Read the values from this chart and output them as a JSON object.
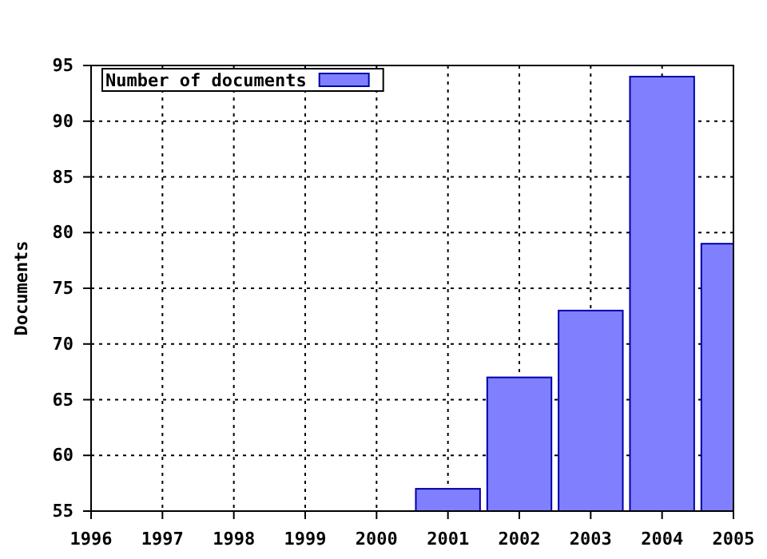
{
  "chart_data": {
    "type": "bar",
    "ylabel": "Documents",
    "x": [
      2001,
      2002,
      2003,
      2004,
      2005
    ],
    "series": [
      {
        "name": "Number of documents",
        "color": "#8080ff",
        "values": [
          57,
          67,
          73,
          94,
          79
        ]
      }
    ],
    "xlim": [
      1996,
      2005
    ],
    "xticks": [
      1996,
      1997,
      1998,
      1999,
      2000,
      2001,
      2002,
      2003,
      2004,
      2005
    ],
    "ylim": [
      55,
      95
    ],
    "yticks": [
      55,
      60,
      65,
      70,
      75,
      80,
      85,
      90,
      95
    ],
    "grid": true,
    "legend": "top left"
  }
}
